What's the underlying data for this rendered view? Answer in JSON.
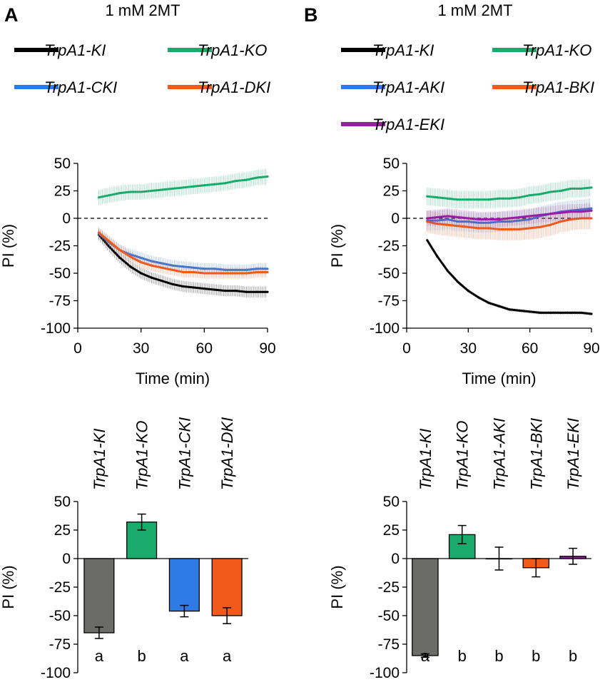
{
  "figure": {
    "panelA": {
      "letter": "A",
      "title": "1 mM 2MT"
    },
    "panelB": {
      "letter": "B",
      "title": "1 mM 2MT"
    }
  },
  "chart_data": [
    {
      "id": "A-line",
      "type": "line",
      "panel": "A",
      "title": "1 mM 2MT",
      "xlabel": "Time (min)",
      "ylabel": "PI (%)",
      "xlim": [
        0,
        90
      ],
      "ylim": [
        -100,
        50
      ],
      "xticks": [
        0,
        30,
        60,
        90
      ],
      "yticks": [
        50,
        25,
        0,
        -25,
        -50,
        -75,
        -100
      ],
      "reference_line": 0,
      "x": [
        10,
        15,
        20,
        25,
        30,
        35,
        40,
        45,
        50,
        55,
        60,
        65,
        70,
        75,
        80,
        85,
        90
      ],
      "series": [
        {
          "name": "TrpA1-KI",
          "color": "#000000",
          "error": 5,
          "values": [
            -15,
            -26,
            -36,
            -44,
            -50,
            -54,
            -57,
            -60,
            -62,
            -63,
            -64,
            -65,
            -66,
            -66,
            -67,
            -67,
            -67
          ]
        },
        {
          "name": "TrpA1-KO",
          "color": "#1aab6c",
          "error": 7,
          "values": [
            19,
            21,
            23,
            24,
            24,
            25,
            26,
            27,
            28,
            29,
            30,
            31,
            32,
            34,
            35,
            37,
            38
          ]
        },
        {
          "name": "TrpA1-CKI",
          "color": "#2f7be6",
          "error": 5,
          "values": [
            -14,
            -22,
            -29,
            -33,
            -36,
            -39,
            -41,
            -43,
            -44,
            -45,
            -46,
            -46,
            -47,
            -47,
            -47,
            -46,
            -46
          ]
        },
        {
          "name": "TrpA1-DKI",
          "color": "#f25a1c",
          "error": 5,
          "values": [
            -13,
            -21,
            -29,
            -35,
            -40,
            -43,
            -45,
            -47,
            -49,
            -49,
            -50,
            -50,
            -50,
            -50,
            -50,
            -49,
            -49
          ]
        }
      ]
    },
    {
      "id": "B-line",
      "type": "line",
      "panel": "B",
      "title": "1 mM 2MT",
      "xlabel": "Time (min)",
      "ylabel": "PI (%)",
      "xlim": [
        0,
        90
      ],
      "ylim": [
        -100,
        50
      ],
      "xticks": [
        0,
        30,
        60,
        90
      ],
      "yticks": [
        50,
        25,
        0,
        -25,
        -50,
        -75,
        -100
      ],
      "reference_line": 0,
      "x": [
        10,
        15,
        20,
        25,
        30,
        35,
        40,
        45,
        50,
        55,
        60,
        65,
        70,
        75,
        80,
        85,
        90
      ],
      "series": [
        {
          "name": "TrpA1-KI",
          "color": "#000000",
          "error": 1.5,
          "values": [
            -20,
            -35,
            -48,
            -58,
            -66,
            -72,
            -77,
            -80,
            -83,
            -84,
            -85,
            -86,
            -86,
            -86,
            -86,
            -86,
            -87
          ]
        },
        {
          "name": "TrpA1-KO",
          "color": "#1aab6c",
          "error": 8,
          "values": [
            20,
            19,
            18,
            17,
            17,
            17,
            17,
            18,
            18,
            19,
            21,
            22,
            24,
            25,
            27,
            27,
            28
          ]
        },
        {
          "name": "TrpA1-AKI",
          "color": "#2f7be6",
          "error": 9,
          "values": [
            -2,
            -2,
            -1,
            -3,
            -3,
            -4,
            -4,
            -3,
            -3,
            -2,
            -1,
            2,
            4,
            6,
            7,
            8,
            9
          ]
        },
        {
          "name": "TrpA1-BKI",
          "color": "#f25a1c",
          "error": 10,
          "values": [
            -3,
            -5,
            -6,
            -7,
            -8,
            -9,
            -9,
            -10,
            -10,
            -10,
            -9,
            -8,
            -6,
            -3,
            -1,
            0,
            0
          ]
        },
        {
          "name": "TrpA1-EKI",
          "color": "#9b1aa6",
          "error": 7,
          "values": [
            0,
            1,
            2,
            1,
            0,
            -1,
            -1,
            -1,
            0,
            1,
            2,
            3,
            4,
            5,
            6,
            6,
            7
          ]
        }
      ]
    },
    {
      "id": "A-bar",
      "type": "bar",
      "panel": "A",
      "ylabel": "PI (%)",
      "ylim": [
        -100,
        50
      ],
      "yticks": [
        50,
        25,
        0,
        -25,
        -50,
        -75,
        -100
      ],
      "categories": [
        "TrpA1-KI",
        "TrpA1-KO",
        "TrpA1-CKI",
        "TrpA1-DKI"
      ],
      "values": [
        -65,
        32,
        -46,
        -50
      ],
      "errors": [
        5,
        7,
        5,
        7
      ],
      "significance": [
        "a",
        "b",
        "a",
        "a"
      ],
      "colors": [
        "#6b6c68",
        "#1aab6c",
        "#2f7be6",
        "#f25a1c"
      ]
    },
    {
      "id": "B-bar",
      "type": "bar",
      "panel": "B",
      "ylabel": "PI (%)",
      "ylim": [
        -100,
        50
      ],
      "yticks": [
        50,
        25,
        0,
        -25,
        -50,
        -75,
        -100
      ],
      "categories": [
        "TrpA1-KI",
        "TrpA1-KO",
        "TrpA1-AKI",
        "TrpA1-BKI",
        "TrpA1-EKI"
      ],
      "values": [
        -85,
        21,
        0,
        -8,
        2
      ],
      "errors": [
        1.5,
        8,
        10,
        8,
        7
      ],
      "significance": [
        "a",
        "b",
        "b",
        "b",
        "b"
      ],
      "colors": [
        "#6b6c68",
        "#1aab6c",
        "#2f7be6",
        "#f25a1c",
        "#9b1aa6"
      ]
    }
  ]
}
